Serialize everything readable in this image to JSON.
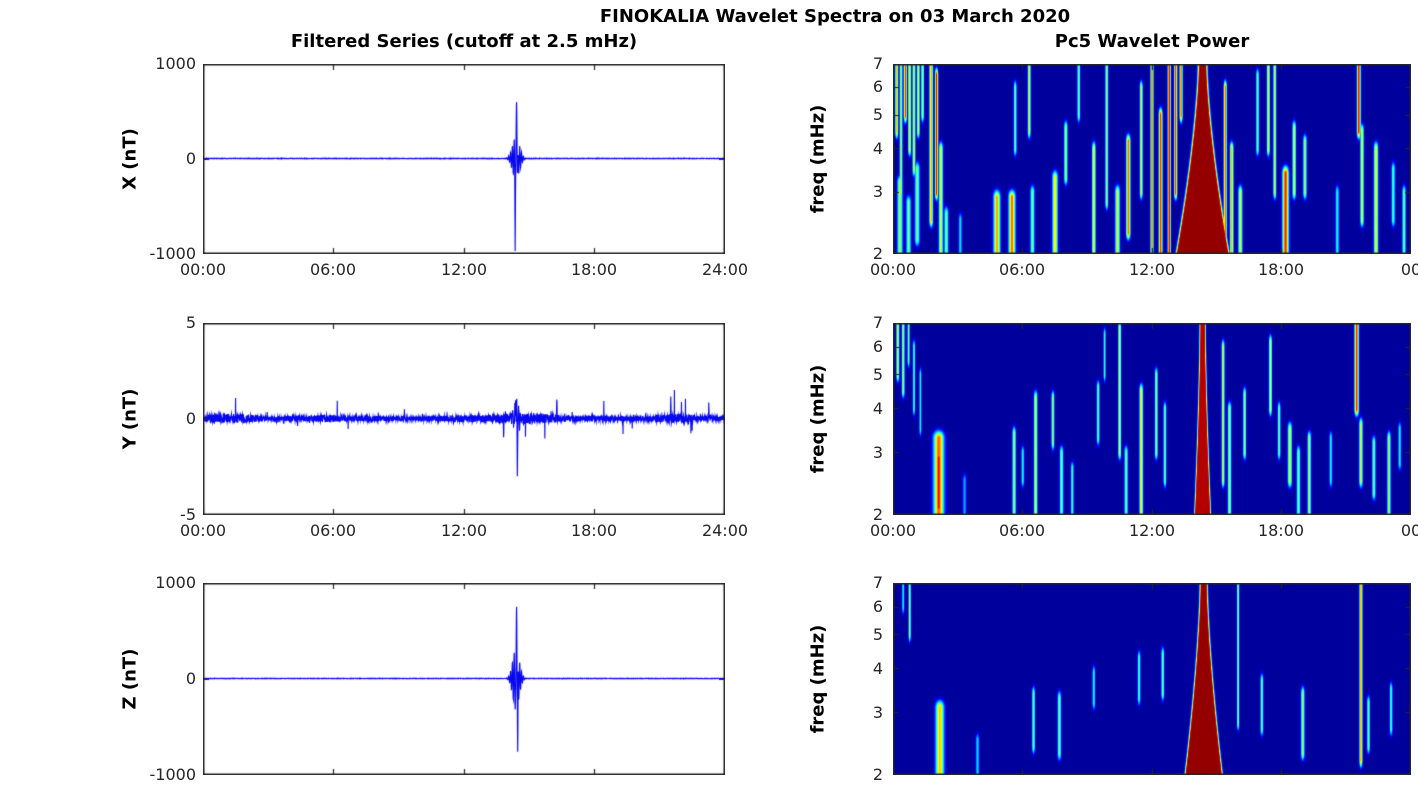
{
  "title": "FINOKALIA Wavelet Spectra on 03 March 2020",
  "left_column": {
    "title": "Filtered Series (cutoff at 2.5 mHz)"
  },
  "right_column": {
    "title": "Pc5 Wavelet Power"
  },
  "axes": {
    "time_ticks": [
      "00:00",
      "06:00",
      "12:00",
      "18:00",
      "24:00"
    ],
    "time_ticks_right": [
      "00:00",
      "06:00",
      "12:00",
      "18:00",
      "00"
    ],
    "freq_ticks": [
      "7",
      "6",
      "5",
      "4",
      "3",
      "2"
    ],
    "nT_ticks": [
      "1000",
      "0",
      "-1000"
    ],
    "y2_ticks": [
      "5",
      "0",
      "-5"
    ],
    "ylabels": {
      "x": "X (nT)",
      "y": "Y (nT)",
      "z": "Z (nT)",
      "freq": "freq (mHz)"
    }
  },
  "colors": {
    "series_line": "#0808f0",
    "axis": "#262626",
    "heatmap_background": "#0000a0",
    "heatmap_peak": "#800000",
    "colormap": "jet"
  },
  "chart_data": [
    {
      "id": "x_filtered_series",
      "type": "line",
      "ylabel": "X (nT)",
      "x_range_hours": [
        0,
        24
      ],
      "y_range": [
        -1000,
        1000
      ],
      "x_ticks": [
        "00:00",
        "06:00",
        "12:00",
        "18:00",
        "24:00"
      ],
      "y_ticks": [
        1000,
        0,
        -1000
      ],
      "seed": 7,
      "noise_amp": 2.2,
      "bursts": [
        {
          "center": 14.42,
          "sigma": 0.16,
          "peak": 230,
          "period": 0.085
        },
        {
          "center": 14.45,
          "sigma": 0.035,
          "peak": 700,
          "period": 0.11
        }
      ],
      "spikes": [
        {
          "t": 14.38,
          "v": -700
        }
      ]
    },
    {
      "id": "y_filtered_series",
      "type": "line",
      "ylabel": "Y (nT)",
      "x_range_hours": [
        0,
        24
      ],
      "y_range": [
        -5,
        5
      ],
      "x_ticks": [
        "00:00",
        "06:00",
        "12:00",
        "18:00",
        "24:00"
      ],
      "y_ticks": [
        5,
        0,
        -5
      ],
      "seed": 13,
      "noise_amp": 0.14,
      "spike_prob": 0.012,
      "noise_env": [
        {
          "c": 14.6,
          "s": 1.6,
          "a": 0.6
        },
        {
          "c": 21.6,
          "s": 0.8,
          "a": 0.45
        },
        {
          "c": 0.8,
          "s": 0.8,
          "a": 0.35
        },
        {
          "c": 5.8,
          "s": 0.5,
          "a": 0.3
        },
        {
          "c": 2.0,
          "s": 0.6,
          "a": 0.25
        }
      ],
      "bursts": [
        {
          "center": 14.45,
          "sigma": 0.1,
          "peak": 0.9,
          "period": 0.09
        }
      ],
      "spikes": [
        {
          "t": 14.4,
          "v": 2.1
        },
        {
          "t": 14.48,
          "v": -2.8
        },
        {
          "t": 13.85,
          "v": -1.3
        },
        {
          "t": 16.3,
          "v": 1.0
        },
        {
          "t": 21.55,
          "v": 1.0
        },
        {
          "t": 23.3,
          "v": 0.85
        }
      ]
    },
    {
      "id": "z_filtered_series",
      "type": "line",
      "ylabel": "Z (nT)",
      "x_range_hours": [
        0,
        24
      ],
      "y_range": [
        -1000,
        1000
      ],
      "x_ticks": [],
      "y_ticks": [
        1000,
        0,
        -1000
      ],
      "seed": 29,
      "noise_amp": 1.8,
      "bursts": [
        {
          "center": 14.42,
          "sigma": 0.15,
          "peak": 320,
          "period": 0.085
        },
        {
          "center": 14.45,
          "sigma": 0.03,
          "peak": 900,
          "period": 0.1
        }
      ],
      "spikes": [
        {
          "t": 14.5,
          "v": -880
        }
      ]
    },
    {
      "id": "x_wavelet_power",
      "type": "heatmap",
      "ylabel": "freq (mHz)",
      "x_range_hours": [
        0,
        24
      ],
      "f_range_mHz": [
        2,
        7
      ],
      "y_scale": "log",
      "x_ticks": [
        "00:00",
        "06:00",
        "12:00",
        "18:00",
        "00"
      ],
      "freq_ticks": [
        7,
        6,
        5,
        4,
        3,
        2
      ],
      "background_value": 0.015,
      "cone": {
        "t": 14.35,
        "base_halfwidth": 1.15,
        "top_halfwidth": 0.12,
        "amp": 0.98,
        "edge": 0.07
      },
      "streaks": [
        [
          0.15,
          4.5,
          7,
          0.05,
          0.7
        ],
        [
          0.35,
          3,
          7,
          0.05,
          0.55
        ],
        [
          0.55,
          5,
          7,
          0.05,
          0.85
        ],
        [
          0.75,
          4,
          7,
          0.05,
          0.65
        ],
        [
          0.95,
          3.5,
          7,
          0.05,
          0.6
        ],
        [
          1.15,
          4.5,
          7,
          0.05,
          0.6
        ],
        [
          1.35,
          5,
          7,
          0.05,
          0.55
        ],
        [
          0.3,
          2,
          3.2,
          0.09,
          0.55
        ],
        [
          0.7,
          2,
          2.8,
          0.08,
          0.5
        ],
        [
          1.1,
          2.2,
          3.5,
          0.08,
          0.5
        ],
        [
          1.75,
          2.5,
          7,
          0.06,
          0.72
        ],
        [
          2.0,
          3,
          6.5,
          0.05,
          0.92
        ],
        [
          2.2,
          2,
          4,
          0.07,
          0.6
        ],
        [
          2.45,
          2,
          2.6,
          0.07,
          0.5
        ],
        [
          3.1,
          2,
          2.5,
          0.06,
          0.35
        ],
        [
          4.8,
          2,
          2.9,
          0.11,
          0.72
        ],
        [
          5.5,
          2,
          2.9,
          0.11,
          0.78
        ],
        [
          5.65,
          4,
          6,
          0.05,
          0.5
        ],
        [
          6.3,
          4.5,
          7,
          0.05,
          0.6
        ],
        [
          6.45,
          2,
          3,
          0.07,
          0.5
        ],
        [
          7.5,
          2,
          3.3,
          0.09,
          0.65
        ],
        [
          8.0,
          3.3,
          4.6,
          0.06,
          0.55
        ],
        [
          8.6,
          5,
          7,
          0.05,
          0.5
        ],
        [
          9.3,
          2,
          4,
          0.06,
          0.65
        ],
        [
          9.9,
          2.8,
          7,
          0.05,
          0.55
        ],
        [
          10.4,
          2,
          3,
          0.08,
          0.6
        ],
        [
          10.9,
          2.3,
          4.2,
          0.07,
          0.78
        ],
        [
          11.5,
          3,
          6,
          0.05,
          0.6
        ],
        [
          12.0,
          2,
          7,
          0.05,
          0.8
        ],
        [
          12.4,
          2,
          5,
          0.06,
          0.85
        ],
        [
          12.8,
          2,
          7,
          0.05,
          0.9
        ],
        [
          13.1,
          3,
          7,
          0.05,
          0.85
        ],
        [
          13.35,
          5,
          7,
          0.05,
          0.8
        ],
        [
          15.4,
          2,
          6,
          0.05,
          0.8
        ],
        [
          15.7,
          2,
          4,
          0.06,
          0.7
        ],
        [
          16.1,
          2,
          3,
          0.07,
          0.6
        ],
        [
          16.9,
          4,
          6.5,
          0.05,
          0.5
        ],
        [
          17.4,
          4,
          7,
          0.05,
          0.65
        ],
        [
          17.7,
          3,
          7,
          0.05,
          0.6
        ],
        [
          18.2,
          2,
          3.4,
          0.1,
          0.85
        ],
        [
          18.6,
          3,
          4.6,
          0.06,
          0.6
        ],
        [
          19.1,
          3,
          4.2,
          0.06,
          0.55
        ],
        [
          20.6,
          2,
          3,
          0.06,
          0.4
        ],
        [
          21.6,
          4.5,
          7,
          0.06,
          0.88
        ],
        [
          21.75,
          2.5,
          4.5,
          0.06,
          0.6
        ],
        [
          22.4,
          2,
          4,
          0.07,
          0.65
        ],
        [
          23.2,
          2.5,
          3.5,
          0.06,
          0.45
        ],
        [
          23.7,
          2,
          3,
          0.06,
          0.5
        ]
      ]
    },
    {
      "id": "y_wavelet_power",
      "type": "heatmap",
      "ylabel": "freq (mHz)",
      "x_range_hours": [
        0,
        24
      ],
      "f_range_mHz": [
        2,
        7
      ],
      "y_scale": "log",
      "x_ticks": [
        "00:00",
        "06:00",
        "12:00",
        "18:00",
        "00"
      ],
      "freq_ticks": [
        7,
        6,
        5,
        4,
        3,
        2
      ],
      "background_value": 0.015,
      "cone": {
        "t": 14.35,
        "base_halfwidth": 0.32,
        "top_halfwidth": 0.07,
        "amp": 0.95,
        "edge": 0.05
      },
      "streaks": [
        [
          0.2,
          5,
          7,
          0.05,
          0.6
        ],
        [
          0.45,
          4.5,
          7,
          0.05,
          0.55
        ],
        [
          0.7,
          5.5,
          7,
          0.04,
          0.5
        ],
        [
          0.95,
          4,
          6,
          0.04,
          0.45
        ],
        [
          1.25,
          3.5,
          5,
          0.04,
          0.4
        ],
        [
          2.1,
          2,
          3.3,
          0.17,
          0.78
        ],
        [
          2.1,
          2.1,
          2.9,
          0.11,
          0.88
        ],
        [
          3.3,
          2,
          2.5,
          0.06,
          0.3
        ],
        [
          5.6,
          2,
          3.4,
          0.06,
          0.55
        ],
        [
          6.0,
          2.5,
          3,
          0.05,
          0.4
        ],
        [
          6.6,
          2,
          4.3,
          0.06,
          0.6
        ],
        [
          7.4,
          3.2,
          4.3,
          0.05,
          0.55
        ],
        [
          7.8,
          2,
          3,
          0.06,
          0.5
        ],
        [
          8.3,
          2,
          2.7,
          0.05,
          0.45
        ],
        [
          9.5,
          3.3,
          4.6,
          0.05,
          0.5
        ],
        [
          9.8,
          5,
          6.5,
          0.04,
          0.45
        ],
        [
          10.5,
          3,
          6.8,
          0.05,
          0.6
        ],
        [
          10.8,
          2,
          3,
          0.06,
          0.5
        ],
        [
          11.5,
          2,
          4.5,
          0.06,
          0.65
        ],
        [
          12.2,
          3,
          5,
          0.05,
          0.55
        ],
        [
          12.6,
          2.5,
          4,
          0.05,
          0.5
        ],
        [
          14.35,
          6.4,
          7,
          0.04,
          0.92
        ],
        [
          15.3,
          2.5,
          6,
          0.05,
          0.6
        ],
        [
          15.6,
          2,
          4,
          0.06,
          0.55
        ],
        [
          16.3,
          3,
          4.4,
          0.05,
          0.55
        ],
        [
          17.5,
          4,
          6.2,
          0.05,
          0.6
        ],
        [
          17.9,
          3,
          4,
          0.05,
          0.5
        ],
        [
          18.4,
          2.5,
          3.5,
          0.07,
          0.6
        ],
        [
          18.8,
          2,
          3,
          0.06,
          0.5
        ],
        [
          19.3,
          2,
          3.3,
          0.06,
          0.55
        ],
        [
          20.3,
          2.5,
          3.3,
          0.05,
          0.4
        ],
        [
          21.5,
          4,
          7,
          0.07,
          0.85
        ],
        [
          21.7,
          2.5,
          3.6,
          0.06,
          0.6
        ],
        [
          22.3,
          2.3,
          3.2,
          0.06,
          0.5
        ],
        [
          23.0,
          2,
          3.3,
          0.06,
          0.55
        ],
        [
          23.5,
          2.8,
          3.5,
          0.05,
          0.4
        ]
      ]
    },
    {
      "id": "z_wavelet_power",
      "type": "heatmap",
      "ylabel": "freq (mHz)",
      "x_range_hours": [
        0,
        24
      ],
      "f_range_mHz": [
        2,
        7
      ],
      "y_scale": "log",
      "x_ticks": [],
      "freq_ticks": [
        7,
        6,
        5,
        4,
        3,
        2
      ],
      "background_value": 0.015,
      "cone": {
        "t": 14.4,
        "base_halfwidth": 0.8,
        "top_halfwidth": 0.1,
        "amp": 0.98,
        "edge": 0.06
      },
      "streaks": [
        [
          0.45,
          6,
          7,
          0.04,
          0.4
        ],
        [
          0.75,
          5,
          7,
          0.04,
          0.55
        ],
        [
          2.15,
          2,
          3.1,
          0.14,
          0.68
        ],
        [
          3.9,
          2,
          2.5,
          0.06,
          0.35
        ],
        [
          6.5,
          2.4,
          3.4,
          0.05,
          0.5
        ],
        [
          7.7,
          2.3,
          3.3,
          0.06,
          0.5
        ],
        [
          9.3,
          3.2,
          3.9,
          0.05,
          0.4
        ],
        [
          11.4,
          3.3,
          4.3,
          0.05,
          0.45
        ],
        [
          12.5,
          3.4,
          4.4,
          0.05,
          0.5
        ],
        [
          16.0,
          2.8,
          7,
          0.04,
          0.55
        ],
        [
          17.1,
          2.7,
          3.7,
          0.05,
          0.5
        ],
        [
          19.0,
          2.3,
          3.4,
          0.06,
          0.55
        ],
        [
          21.7,
          2.2,
          7,
          0.05,
          0.75
        ],
        [
          22.05,
          2.4,
          3.2,
          0.05,
          0.5
        ],
        [
          23.1,
          2.7,
          3.5,
          0.05,
          0.45
        ]
      ]
    }
  ]
}
